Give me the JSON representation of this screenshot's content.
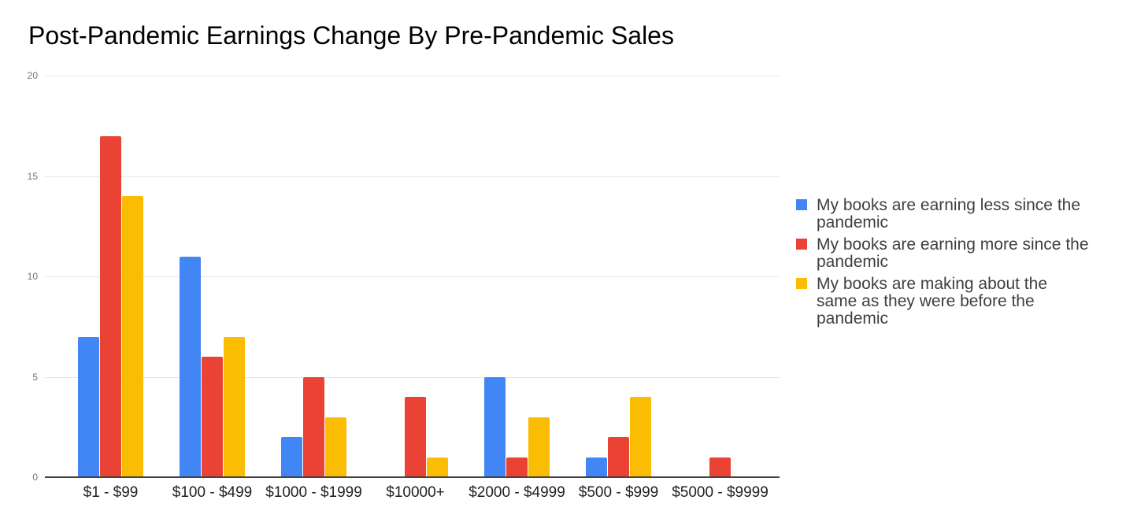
{
  "chart_data": {
    "type": "bar",
    "title": "Post-Pandemic Earnings Change By Pre-Pandemic Sales",
    "categories": [
      "$1 - $99",
      "$100 - $499",
      "$1000 - $1999",
      "$10000+",
      "$2000 - $4999",
      "$500 - $999",
      "$5000 - $9999"
    ],
    "series": [
      {
        "name": "My books are earning less since the pandemic",
        "color": "#4285F4",
        "values": [
          7,
          11,
          2,
          0,
          5,
          1,
          0
        ]
      },
      {
        "name": "My books are earning more since the pandemic",
        "color": "#EA4335",
        "values": [
          17,
          6,
          5,
          4,
          1,
          2,
          1
        ]
      },
      {
        "name": "My books are making about the same as they were before the pandemic",
        "color": "#FBBC04",
        "values": [
          14,
          7,
          3,
          1,
          3,
          4,
          0
        ]
      }
    ],
    "xlabel": "",
    "ylabel": "",
    "ylim": [
      0,
      20
    ],
    "yticks": [
      0,
      5,
      10,
      15,
      20
    ],
    "grid": true,
    "legend_position": "right",
    "colors": {
      "background": "#ffffff",
      "gridline": "#e6e6e6",
      "axis_line": "#424242",
      "ytick_text": "#757575",
      "xtick_text": "#1f1f1f",
      "legend_text": "#3c4043",
      "title_text": "#000000"
    }
  }
}
